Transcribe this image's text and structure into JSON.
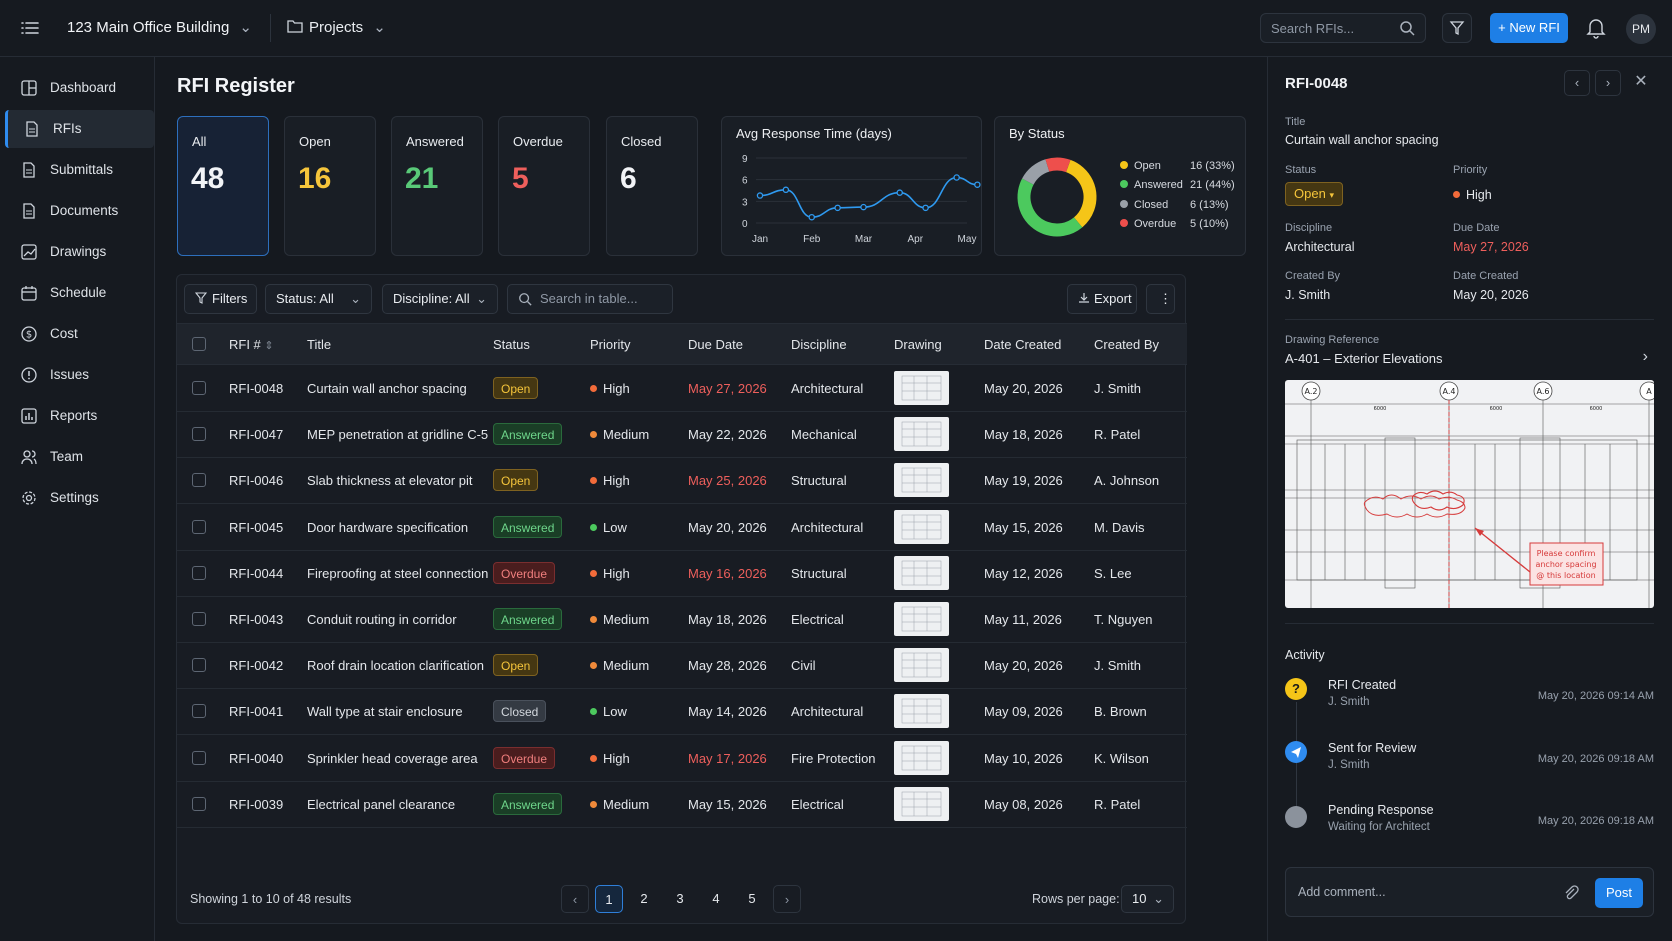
{
  "topbar": {
    "project": "123 Main Office Building",
    "section": "Projects",
    "search_placeholder": "Search RFIs...",
    "new_rfi": "+ New RFI",
    "avatar": "PM"
  },
  "sidebar": {
    "items": [
      {
        "label": "Dashboard",
        "icon": "dashboard-icon"
      },
      {
        "label": "RFIs",
        "icon": "document-icon"
      },
      {
        "label": "Submittals",
        "icon": "document-icon"
      },
      {
        "label": "Documents",
        "icon": "document-icon"
      },
      {
        "label": "Drawings",
        "icon": "chart-icon"
      },
      {
        "label": "Schedule",
        "icon": "calendar-icon"
      },
      {
        "label": "Cost",
        "icon": "dollar-icon"
      },
      {
        "label": "Issues",
        "icon": "alert-icon"
      },
      {
        "label": "Reports",
        "icon": "report-icon"
      },
      {
        "label": "Team",
        "icon": "team-icon"
      },
      {
        "label": "Settings",
        "icon": "gear-icon"
      }
    ],
    "active": "RFIs"
  },
  "page": {
    "title": "RFI Register"
  },
  "stats": [
    {
      "label": "All",
      "value": "48",
      "color": "#f2f4f7"
    },
    {
      "label": "Open",
      "value": "16",
      "color": "#f5c53b"
    },
    {
      "label": "Answered",
      "value": "21",
      "color": "#59c978"
    },
    {
      "label": "Overdue",
      "value": "5",
      "color": "#ee5f5c"
    },
    {
      "label": "Closed",
      "value": "6",
      "color": "#f2f4f7"
    }
  ],
  "chart_data": [
    {
      "type": "line",
      "title": "Avg Response Time (days)",
      "x_ticks": [
        "Jan",
        "Feb",
        "Mar",
        "Apr",
        "May"
      ],
      "y_ticks": [
        "9",
        "6",
        "3",
        "0"
      ],
      "ylim": [
        0,
        9
      ],
      "values": [
        3.8,
        4.6,
        0.8,
        2.1,
        2.2,
        4.2,
        2.1,
        6.3,
        5.3
      ],
      "x_positions": [
        0.0,
        0.5,
        1.0,
        1.5,
        2.0,
        2.7,
        3.2,
        3.8,
        4.2
      ],
      "grid": true,
      "color": "#2f9af0"
    },
    {
      "type": "pie",
      "title": "By Status",
      "categories": [
        "Open",
        "Answered",
        "Closed",
        "Overdue"
      ],
      "values": [
        16,
        21,
        6,
        5
      ],
      "labels": [
        "16 (33%)",
        "21 (44%)",
        "6 (13%)",
        "5 (10%)"
      ],
      "colors": [
        "#f5c518",
        "#4cc95e",
        "#9aa0a8",
        "#ee4f4c"
      ],
      "legend": "right"
    }
  ],
  "toolbar": {
    "filters": "Filters",
    "status": "Status: All",
    "discipline": "Discipline: All",
    "search_placeholder": "Search in table...",
    "export": "Export"
  },
  "table": {
    "headers": [
      "RFI #",
      "Title",
      "Status",
      "Priority",
      "Due Date",
      "Discipline",
      "Drawing",
      "Date Created",
      "Created By"
    ],
    "rows": [
      {
        "id": "RFI-0048",
        "title": "Curtain wall anchor spacing",
        "status": "Open",
        "priority": "High",
        "due": "May 27, 2026",
        "due_overdue": true,
        "discipline": "Architectural",
        "created": "May 20, 2026",
        "by": "J. Smith"
      },
      {
        "id": "RFI-0047",
        "title": "MEP penetration at gridline C-5",
        "status": "Answered",
        "priority": "Medium",
        "due": "May 22, 2026",
        "due_overdue": false,
        "discipline": "Mechanical",
        "created": "May 18, 2026",
        "by": "R. Patel"
      },
      {
        "id": "RFI-0046",
        "title": "Slab thickness at elevator pit",
        "status": "Open",
        "priority": "High",
        "due": "May 25, 2026",
        "due_overdue": true,
        "discipline": "Structural",
        "created": "May 19, 2026",
        "by": "A. Johnson"
      },
      {
        "id": "RFI-0045",
        "title": "Door hardware specification",
        "status": "Answered",
        "priority": "Low",
        "due": "May 20, 2026",
        "due_overdue": false,
        "discipline": "Architectural",
        "created": "May 15, 2026",
        "by": "M. Davis"
      },
      {
        "id": "RFI-0044",
        "title": "Fireproofing at steel connection",
        "status": "Overdue",
        "priority": "High",
        "due": "May 16, 2026",
        "due_overdue": true,
        "discipline": "Structural",
        "created": "May 12, 2026",
        "by": "S. Lee"
      },
      {
        "id": "RFI-0043",
        "title": "Conduit routing in corridor",
        "status": "Answered",
        "priority": "Medium",
        "due": "May 18, 2026",
        "due_overdue": false,
        "discipline": "Electrical",
        "created": "May 11, 2026",
        "by": "T. Nguyen"
      },
      {
        "id": "RFI-0042",
        "title": "Roof drain location clarification",
        "status": "Open",
        "priority": "Medium",
        "due": "May 28, 2026",
        "due_overdue": false,
        "discipline": "Civil",
        "created": "May 20, 2026",
        "by": "J. Smith"
      },
      {
        "id": "RFI-0041",
        "title": "Wall type at stair enclosure",
        "status": "Closed",
        "priority": "Low",
        "due": "May 14, 2026",
        "due_overdue": false,
        "discipline": "Architectural",
        "created": "May 09, 2026",
        "by": "B. Brown"
      },
      {
        "id": "RFI-0040",
        "title": "Sprinkler head coverage area",
        "status": "Overdue",
        "priority": "High",
        "due": "May 17, 2026",
        "due_overdue": true,
        "discipline": "Fire Protection",
        "created": "May 10, 2026",
        "by": "K. Wilson"
      },
      {
        "id": "RFI-0039",
        "title": "Electrical panel clearance",
        "status": "Answered",
        "priority": "Medium",
        "due": "May 15, 2026",
        "due_overdue": false,
        "discipline": "Electrical",
        "created": "May 08, 2026",
        "by": "R. Patel"
      }
    ]
  },
  "pagination": {
    "summary": "Showing 1 to 10 of 48 results",
    "pages": [
      "1",
      "2",
      "3",
      "4",
      "5"
    ],
    "current": "1",
    "rows_label": "Rows per page:",
    "rows_value": "10"
  },
  "detail": {
    "id": "RFI-0048",
    "title_label": "Title",
    "title": "Curtain wall anchor spacing",
    "status_label": "Status",
    "status": "Open",
    "priority_label": "Priority",
    "priority": "High",
    "discipline_label": "Discipline",
    "discipline": "Architectural",
    "due_label": "Due Date",
    "due": "May 27, 2026",
    "created_by_label": "Created By",
    "created_by": "J. Smith",
    "created_label": "Date Created",
    "created": "May 20, 2026",
    "drawing_label": "Drawing Reference",
    "drawing": "A-401 – Exterior Elevations",
    "grid_labels": [
      "A.2",
      "A.4",
      "A.6",
      "A"
    ],
    "dims": [
      "6000",
      "6000",
      "6000",
      "6000"
    ],
    "callout": [
      "Please confirm",
      "anchor spacing",
      "@ this location"
    ],
    "activity_label": "Activity",
    "activity": [
      {
        "title": "RFI Created",
        "sub": "J. Smith",
        "date": "May 20, 2026 09:14 AM",
        "icon": "question-icon",
        "color": "#f5c518"
      },
      {
        "title": "Sent for Review",
        "sub": "J. Smith",
        "date": "May 20, 2026 09:18 AM",
        "icon": "send-icon",
        "color": "#2f8cf0"
      },
      {
        "title": "Pending Response",
        "sub": "Waiting for Architect",
        "date": "May 20, 2026 09:18 AM",
        "icon": "pending-icon",
        "color": "#8b929c"
      }
    ],
    "comment_placeholder": "Add comment...",
    "post": "Post"
  },
  "colors": {
    "accent": "#1e7fe6",
    "high": "#f26b3a",
    "medium": "#f08a3a",
    "low": "#4cc95e",
    "overdue_text": "#ee5f5c"
  }
}
